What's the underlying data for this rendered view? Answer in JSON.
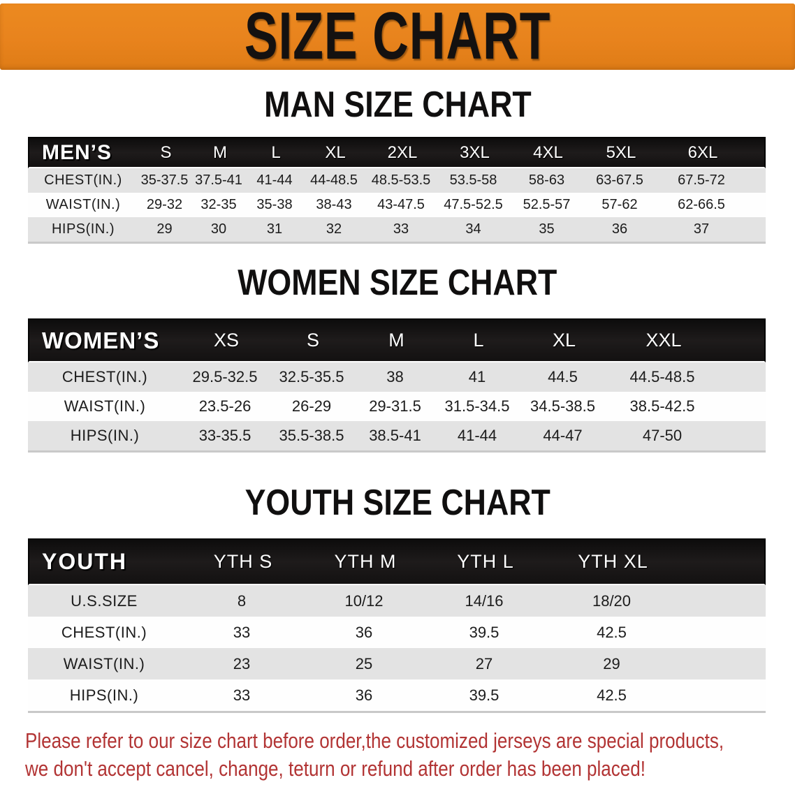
{
  "banner": {
    "title": "SIZE CHART"
  },
  "colors": {
    "banner_bg": "#e8831d",
    "header_bar": "#171414",
    "row_alt": "#e3e3e3",
    "disclaimer_text": "#b23434"
  },
  "sections": [
    {
      "heading": "MAN SIZE CHART",
      "corner_label": "MEN’S",
      "columns": [
        "S",
        "M",
        "L",
        "XL",
        "2XL",
        "3XL",
        "4XL",
        "5XL",
        "6XL"
      ],
      "rows": [
        {
          "label": "CHEST(IN.)",
          "values": [
            "35-37.5",
            "37.5-41",
            "41-44",
            "44-48.5",
            "48.5-53.5",
            "53.5-58",
            "58-63",
            "63-67.5",
            "67.5-72"
          ]
        },
        {
          "label": "WAIST(IN.)",
          "values": [
            "29-32",
            "32-35",
            "35-38",
            "38-43",
            "43-47.5",
            "47.5-52.5",
            "52.5-57",
            "57-62",
            "62-66.5"
          ]
        },
        {
          "label": "HIPS(IN.)",
          "values": [
            "29",
            "30",
            "31",
            "32",
            "33",
            "34",
            "35",
            "36",
            "37"
          ]
        }
      ]
    },
    {
      "heading": "WOMEN SIZE CHART",
      "corner_label": "WOMEN’S",
      "columns": [
        "XS",
        "S",
        "M",
        "L",
        "XL",
        "XXL"
      ],
      "rows": [
        {
          "label": "CHEST(IN.)",
          "values": [
            "29.5-32.5",
            "32.5-35.5",
            "38",
            "41",
            "44.5",
            "44.5-48.5"
          ]
        },
        {
          "label": "WAIST(IN.)",
          "values": [
            "23.5-26",
            "26-29",
            "29-31.5",
            "31.5-34.5",
            "34.5-38.5",
            "38.5-42.5"
          ]
        },
        {
          "label": "HIPS(IN.)",
          "values": [
            "33-35.5",
            "35.5-38.5",
            "38.5-41",
            "41-44",
            "44-47",
            "47-50"
          ]
        }
      ]
    },
    {
      "heading": "YOUTH SIZE CHART",
      "corner_label": "YOUTH",
      "columns": [
        "YTH S",
        "YTH M",
        "YTH L",
        "YTH XL"
      ],
      "rows": [
        {
          "label": "U.S.SIZE",
          "values": [
            "8",
            "10/12",
            "14/16",
            "18/20"
          ]
        },
        {
          "label": "CHEST(IN.)",
          "values": [
            "33",
            "36",
            "39.5",
            "42.5"
          ]
        },
        {
          "label": "WAIST(IN.)",
          "values": [
            "23",
            "25",
            "27",
            "29"
          ]
        },
        {
          "label": "HIPS(IN.)",
          "values": [
            "33",
            "36",
            "39.5",
            "42.5"
          ]
        }
      ]
    }
  ],
  "disclaimer": {
    "line1": "Please refer to our size chart before order,the customized jerseys are special products,",
    "line2": "we don't accept cancel, change, teturn or refund after order has been placed!"
  }
}
